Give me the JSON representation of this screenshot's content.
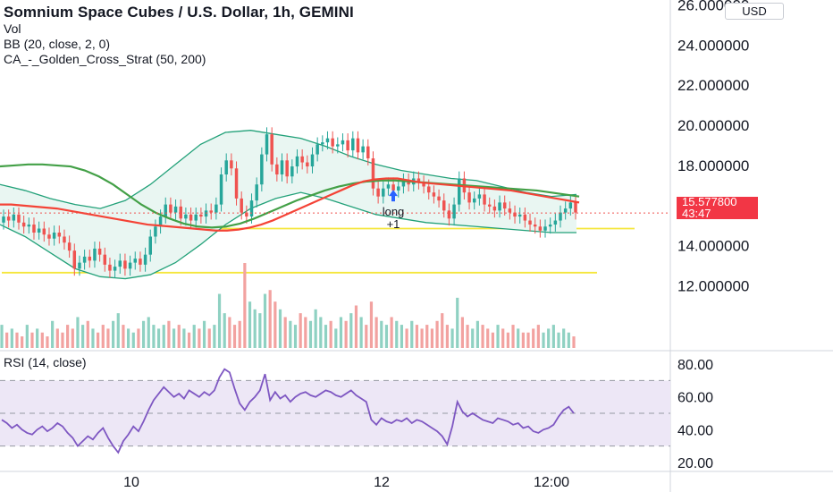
{
  "legend": {
    "title": "Somnium Space Cubes / U.S. Dollar, 1h, GEMINI",
    "vol": "Vol",
    "bb": "BB (20, close, 2, 0)",
    "strategy": "CA_-_Golden_Cross_Strat (50, 200)"
  },
  "currency": "USD",
  "last_price": {
    "value": "15.577800",
    "countdown": "43:47"
  },
  "colors": {
    "up": "#26a69a",
    "down": "#ef5350",
    "bb_fill": "#e9f6f2",
    "bb_band": "#22a179",
    "ma50": "#f44336",
    "ma200": "#43a047",
    "basis": "#8b1a1a",
    "rsi": "#7e57c2",
    "level": "#f5e63c",
    "rsi_band": "#ede7f6"
  },
  "chart_data": [
    {
      "type": "candlestick",
      "title": "Somnium Space Cubes / U.S. Dollar, 1h, GEMINI",
      "x_tick_labels": [
        "10",
        "12",
        "12:00"
      ],
      "y_tick_labels": [
        "12.000000",
        "14.000000",
        "16.000000",
        "18.000000",
        "20.000000",
        "22.000000",
        "24.000000",
        "26.000000"
      ],
      "ylim": [
        8.8,
        26.2
      ],
      "closes": [
        15.4,
        15.2,
        15.5,
        15.1,
        14.9,
        15.0,
        14.6,
        14.8,
        14.5,
        14.3,
        14.6,
        14.4,
        14.1,
        13.7,
        12.8,
        13.1,
        13.4,
        13.2,
        13.8,
        13.5,
        13.0,
        12.7,
        12.9,
        13.2,
        12.8,
        13.1,
        13.3,
        13.0,
        13.5,
        14.4,
        14.9,
        15.4,
        16.0,
        15.6,
        15.9,
        15.3,
        15.5,
        15.2,
        15.5,
        15.4,
        15.7,
        15.6,
        16.0,
        17.5,
        18.2,
        17.8,
        16.3,
        15.6,
        15.4,
        16.2,
        17.0,
        18.5,
        19.5,
        18.0,
        17.5,
        18.2,
        17.4,
        17.9,
        18.4,
        18.1,
        17.9,
        18.5,
        19.0,
        19.1,
        19.3,
        18.9,
        19.0,
        19.2,
        18.7,
        19.3,
        18.6,
        18.9,
        18.3,
        16.8,
        16.4,
        16.8,
        17.0,
        16.7,
        16.9,
        17.2,
        17.0,
        17.3,
        17.1,
        16.9,
        16.6,
        16.4,
        16.2,
        15.7,
        15.3,
        16.0,
        17.3,
        16.6,
        16.1,
        16.3,
        16.5,
        16.0,
        15.9,
        15.7,
        16.1,
        15.8,
        15.6,
        15.4,
        15.5,
        15.2,
        15.0,
        14.9,
        14.7,
        14.9,
        15.0,
        15.2,
        15.6,
        15.8,
        16.1,
        15.6
      ],
      "ma50": [
        16.0,
        16.0,
        15.95,
        15.9,
        15.85,
        15.8,
        15.7,
        15.6,
        15.5,
        15.4,
        15.3,
        15.2,
        15.1,
        15.0,
        14.95,
        14.9,
        14.85,
        14.8,
        14.75,
        14.7,
        14.7,
        14.75,
        14.85,
        15.0,
        15.2,
        15.45,
        15.7,
        15.95,
        16.2,
        16.45,
        16.7,
        16.95,
        17.15,
        17.25,
        17.3,
        17.3,
        17.2,
        17.1,
        17.05,
        17.0,
        16.95,
        16.9,
        16.85,
        16.8,
        16.75,
        16.7,
        16.6,
        16.5,
        16.4,
        16.3,
        16.2,
        16.1
      ],
      "ma200": [
        17.9,
        17.95,
        18.0,
        18.0,
        17.95,
        17.9,
        17.7,
        17.4,
        17.0,
        16.5,
        16.0,
        15.6,
        15.3,
        15.05,
        14.9,
        14.85,
        14.9,
        15.05,
        15.3,
        15.6,
        15.9,
        16.2,
        16.45,
        16.7,
        16.9,
        17.05,
        17.15,
        17.2,
        17.2,
        17.15,
        17.1,
        17.05,
        17.0,
        16.95,
        16.9,
        16.85,
        16.8,
        16.75,
        16.7,
        16.6,
        16.5,
        16.4
      ],
      "bb_upper": [
        17.0,
        16.7,
        16.3,
        16.0,
        15.8,
        16.2,
        17.0,
        18.0,
        19.0,
        19.6,
        19.7,
        19.5,
        19.3,
        18.9,
        18.4,
        18.0,
        17.7,
        17.5,
        17.3,
        17.2,
        16.9,
        16.6,
        16.4,
        16.5
      ],
      "bb_lower": [
        15.0,
        14.4,
        13.6,
        12.8,
        12.4,
        12.3,
        12.5,
        13.1,
        14.0,
        15.0,
        15.8,
        16.3,
        16.6,
        16.3,
        15.9,
        15.5,
        15.3,
        15.1,
        15.0,
        14.9,
        14.8,
        14.7,
        14.6,
        14.6
      ],
      "horizontal_levels": [
        14.8,
        12.6
      ],
      "annotations": [
        "long",
        "+1"
      ],
      "volume": [
        6,
        4,
        5,
        4,
        3,
        6,
        4,
        5,
        4,
        3,
        7,
        5,
        4,
        6,
        5,
        8,
        6,
        7,
        5,
        4,
        6,
        5,
        7,
        9,
        6,
        5,
        4,
        5,
        7,
        8,
        6,
        5,
        6,
        7,
        5,
        6,
        5,
        4,
        6,
        5,
        7,
        5,
        6,
        14,
        9,
        8,
        6,
        7,
        22,
        12,
        10,
        9,
        14,
        15,
        12,
        10,
        8,
        7,
        6,
        9,
        8,
        7,
        10,
        8,
        6,
        7,
        5,
        8,
        7,
        9,
        11,
        8,
        6,
        12,
        8,
        7,
        6,
        8,
        7,
        6,
        5,
        7,
        6,
        5,
        6,
        5,
        7,
        9,
        6,
        5,
        13,
        8,
        6,
        5,
        7,
        6,
        5,
        4,
        6,
        5,
        4,
        6,
        5,
        4,
        4,
        5,
        6,
        4,
        5,
        6,
        4,
        5,
        4,
        3
      ],
      "rsi": {
        "label": "RSI (14, close)",
        "y_tick_labels": [
          "20.00",
          "40.00",
          "60.00",
          "80.00"
        ],
        "ylim": [
          15,
          85
        ],
        "band": [
          30,
          70
        ],
        "mid": 50,
        "values": [
          46,
          44,
          41,
          43,
          40,
          38,
          37,
          40,
          42,
          39,
          41,
          44,
          42,
          38,
          35,
          30,
          33,
          36,
          34,
          38,
          41,
          35,
          30,
          26,
          33,
          37,
          42,
          39,
          45,
          52,
          58,
          62,
          66,
          63,
          60,
          62,
          59,
          64,
          62,
          60,
          63,
          61,
          64,
          72,
          77,
          75,
          65,
          56,
          52,
          57,
          60,
          64,
          74,
          58,
          63,
          59,
          61,
          57,
          60,
          62,
          63,
          61,
          60,
          62,
          64,
          63,
          61,
          60,
          62,
          64,
          61,
          59,
          57,
          46,
          43,
          47,
          45,
          44,
          46,
          45,
          47,
          44,
          46,
          45,
          43,
          41,
          39,
          36,
          31,
          42,
          57,
          51,
          48,
          50,
          48,
          46,
          45,
          44,
          47,
          46,
          45,
          43,
          44,
          41,
          42,
          39,
          38,
          40,
          41,
          43,
          48,
          52,
          54,
          50
        ]
      }
    }
  ]
}
